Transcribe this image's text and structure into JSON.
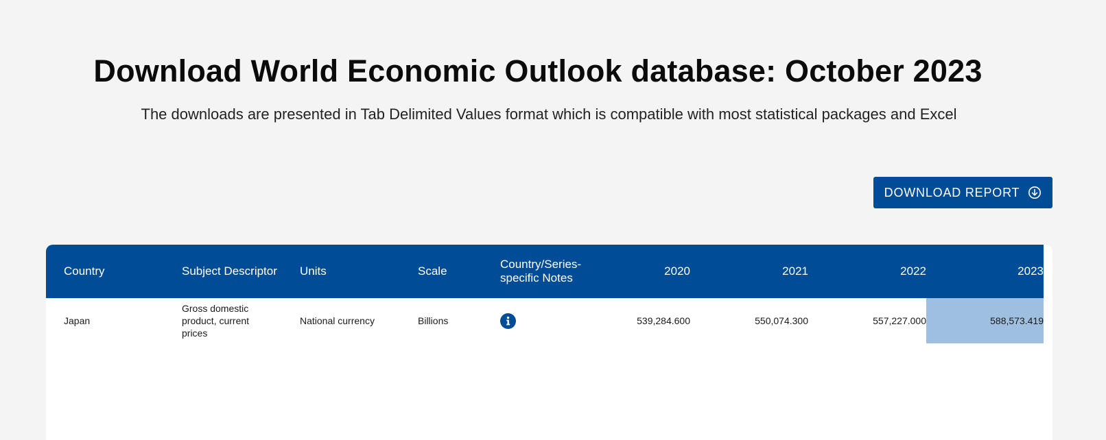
{
  "page": {
    "title": "Download World Economic Outlook database: October 2023",
    "subtitle": "The downloads are presented in Tab Delimited Values format which is compatible with most statistical packages and Excel"
  },
  "download_button": {
    "label": "DOWNLOAD REPORT",
    "icon": "download-circle-icon"
  },
  "table": {
    "headers": {
      "country": "Country",
      "subject": "Subject Descriptor",
      "units": "Units",
      "scale": "Scale",
      "notes": "Country/Series-specific Notes",
      "y2020": "2020",
      "y2021": "2021",
      "y2022": "2022",
      "y2023": "2023"
    },
    "rows": [
      {
        "country": "Japan",
        "subject": "Gross domestic product, current prices",
        "units": "National currency",
        "scale": "Billions",
        "notes_icon": "info-icon",
        "y2020": "539,284.600",
        "y2021": "550,074.300",
        "y2022": "557,227.000",
        "y2023": "588,573.419"
      }
    ]
  },
  "colors": {
    "header_bg": "#004c97",
    "highlight": "#9fbfe0",
    "page_bg": "#f4f4f4"
  }
}
